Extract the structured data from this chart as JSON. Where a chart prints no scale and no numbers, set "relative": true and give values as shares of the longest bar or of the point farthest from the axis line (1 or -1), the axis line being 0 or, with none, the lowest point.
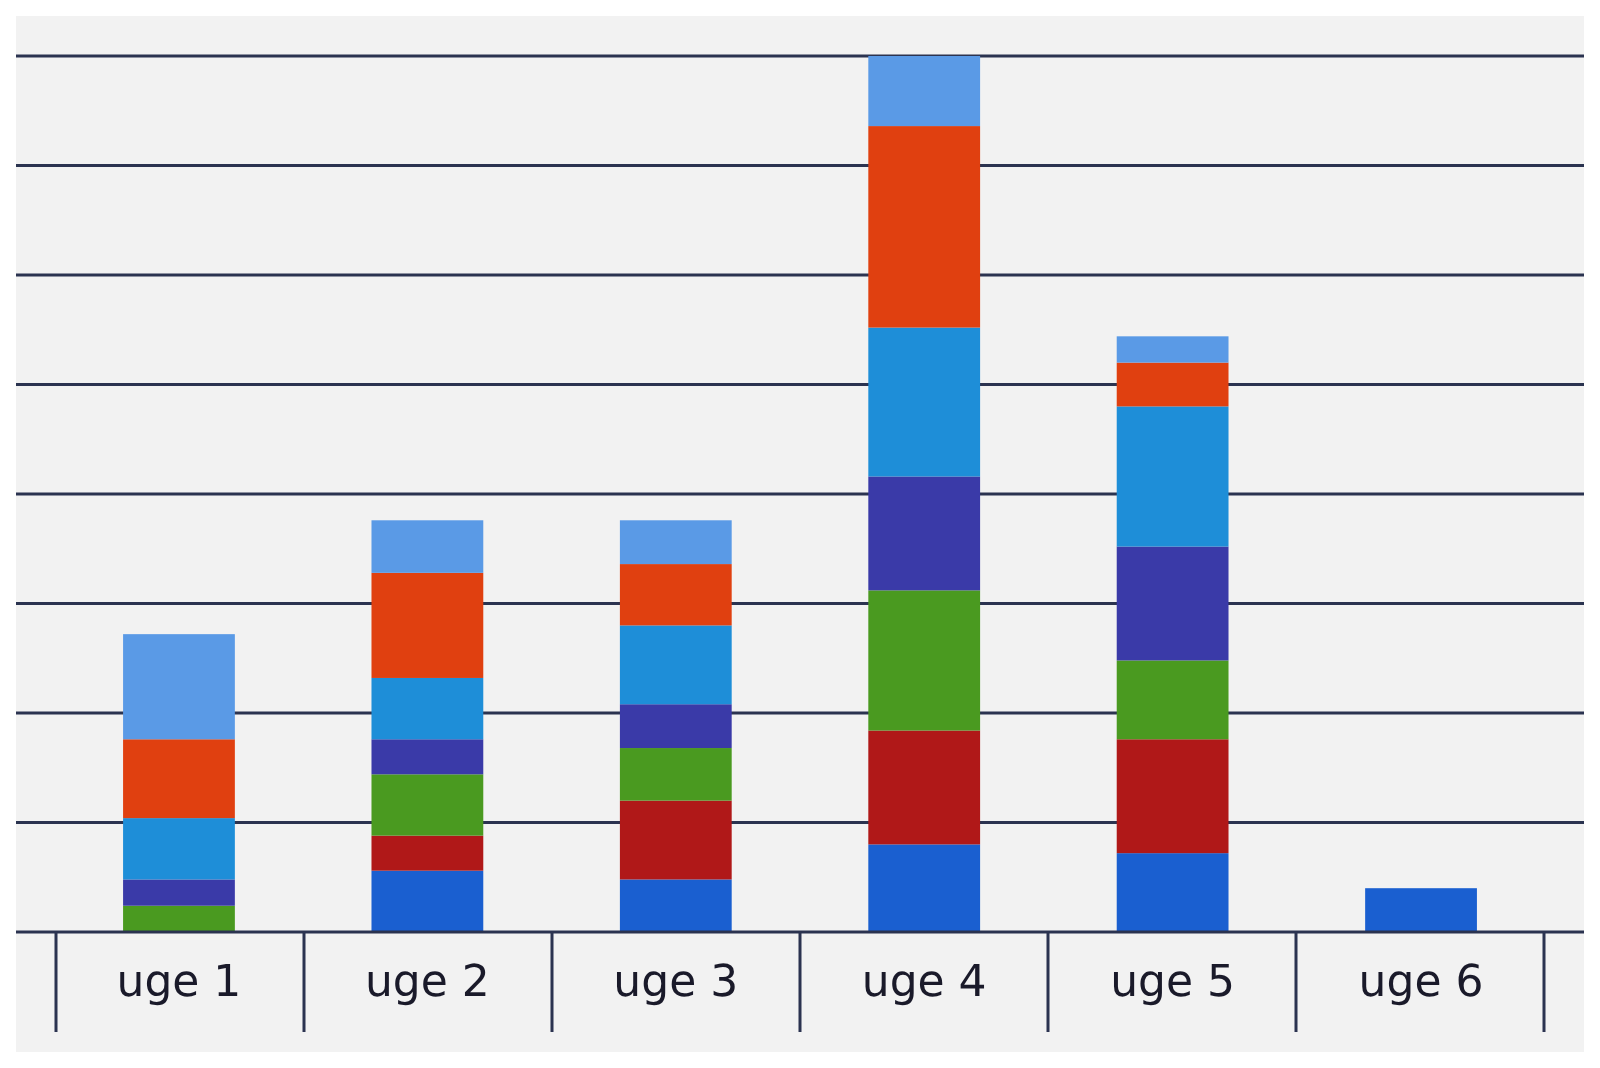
{
  "chart_data": {
    "type": "bar",
    "stacked": true,
    "relative": true,
    "grid": true,
    "categories": [
      "uge 1",
      "uge 2",
      "uge 3",
      "uge 4",
      "uge 5",
      "uge 6"
    ],
    "series": [
      {
        "color": "#1a5fd0",
        "values": [
          0,
          0.07,
          0.06,
          0.1,
          0.09,
          0.05
        ]
      },
      {
        "color": "#b01818",
        "values": [
          0,
          0.04,
          0.09,
          0.13,
          0.13,
          0
        ]
      },
      {
        "color": "#4a9a20",
        "values": [
          0.03,
          0.07,
          0.06,
          0.16,
          0.09,
          0
        ]
      },
      {
        "color": "#3a3aa8",
        "values": [
          0.03,
          0.04,
          0.05,
          0.13,
          0.13,
          0
        ]
      },
      {
        "color": "#1e8ed8",
        "values": [
          0.07,
          0.07,
          0.09,
          0.17,
          0.16,
          0
        ]
      },
      {
        "color": "#e04010",
        "values": [
          0.09,
          0.12,
          0.07,
          0.23,
          0.05,
          0
        ]
      },
      {
        "color": "#5a9ae6",
        "values": [
          0.12,
          0.06,
          0.05,
          0.08,
          0.03,
          0
        ]
      }
    ]
  }
}
